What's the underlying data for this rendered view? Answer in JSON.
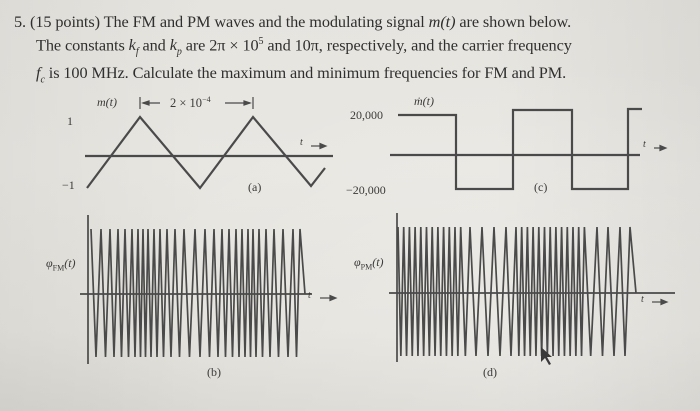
{
  "problem": {
    "number": "5.",
    "points": "(15 points)",
    "line1_rest": "The FM and PM waves and the modulating signal",
    "signal": "m(t)",
    "line1_end": "are shown below.",
    "line2_a": "The constants",
    "kf": "k",
    "kf_sub": "f",
    "and": "and",
    "kp": "k",
    "kp_sub": "p",
    "line2_b": "are 2π × 10",
    "line2_exp": "5",
    "line2_c": "and 10π, respectively, and the carrier frequency",
    "fc": "f",
    "fc_sub": "c",
    "line3": "is 100 MHz. Calculate the maximum and minimum frequencies for FM and PM."
  },
  "figures": {
    "a": {
      "ylabel": "m(t)",
      "y_top": "1",
      "y_bottom": "−1",
      "period_label": "2 × 10",
      "period_exp": "−4",
      "t_label": "t →",
      "caption": "(a)"
    },
    "b": {
      "ylabel": "φ",
      "ylabel_sub": "FM",
      "ylabel_tail": "(t)",
      "t_label": "t →",
      "caption": "(b)"
    },
    "c": {
      "ylabel": "ṁ(t)",
      "y_top": "20,000",
      "y_bottom": "−20,000",
      "t_label": "t →",
      "caption": "(c)"
    },
    "d": {
      "ylabel": "φ",
      "ylabel_sub": "PM",
      "ylabel_tail": "(t)",
      "t_label": "t →",
      "caption": "(d)"
    }
  },
  "chart_data": [
    {
      "type": "line",
      "title": "(a) m(t)",
      "ylabel": "m(t)",
      "xlabel": "t",
      "description": "Triangular modulating signal, amplitude ±1, period 2×10^-4 s",
      "ylim": [
        -1,
        1
      ],
      "period": "2 × 10^-4",
      "x": [
        0,
        0.5,
        1.0,
        1.5,
        2.0,
        2.5,
        3.0
      ],
      "values": [
        -1,
        1,
        -1,
        1,
        -1,
        1,
        -1
      ]
    },
    {
      "type": "line",
      "title": "(b) φFM(t)",
      "ylabel": "φFM(t)",
      "xlabel": "t",
      "description": "FM wave: instantaneous frequency follows m(t); dense where m(t)=1, sparse where m(t)=−1",
      "peaks_visible": 26
    },
    {
      "type": "line",
      "title": "(c) ṁ(t)",
      "ylabel": "ṁ(t)",
      "xlabel": "t",
      "description": "Square wave derivative of m(t)",
      "ylim": [
        -20000,
        20000
      ],
      "values": [
        20000,
        -20000,
        20000,
        -20000,
        20000
      ]
    },
    {
      "type": "line",
      "title": "(d) φPM(t)",
      "ylabel": "φPM(t)",
      "xlabel": "t",
      "description": "PM wave: frequency switches between two values following ṁ(t); dense during +20,000, sparse during −20,000",
      "peaks_visible": 31
    }
  ],
  "colors": {
    "ink": "#3a3a3a",
    "paper": "#e6e4df",
    "wave": "#4a4a4a"
  }
}
